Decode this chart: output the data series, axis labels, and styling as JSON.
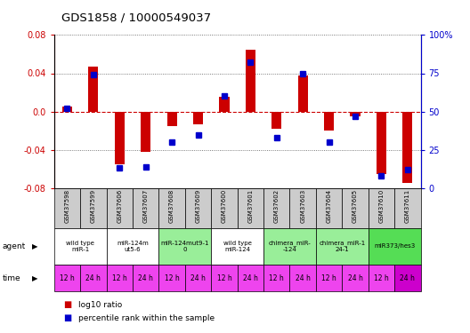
{
  "title": "GDS1858 / 10000549037",
  "samples": [
    "GSM37598",
    "GSM37599",
    "GSM37606",
    "GSM37607",
    "GSM37608",
    "GSM37609",
    "GSM37600",
    "GSM37601",
    "GSM37602",
    "GSM37603",
    "GSM37604",
    "GSM37605",
    "GSM37610",
    "GSM37611"
  ],
  "log10_ratio": [
    0.005,
    0.047,
    -0.055,
    -0.042,
    -0.015,
    -0.013,
    0.015,
    0.065,
    -0.018,
    0.038,
    -0.02,
    -0.005,
    -0.065,
    -0.075
  ],
  "percentile_rank": [
    52,
    74,
    13,
    14,
    30,
    35,
    60,
    82,
    33,
    75,
    30,
    47,
    8,
    12
  ],
  "agents": [
    {
      "label": "wild type\nmiR-1",
      "cols": [
        0,
        1
      ],
      "color": "#ffffff"
    },
    {
      "label": "miR-124m\nut5-6",
      "cols": [
        2,
        3
      ],
      "color": "#ffffff"
    },
    {
      "label": "miR-124mut9-1\n0",
      "cols": [
        4,
        5
      ],
      "color": "#99ee99"
    },
    {
      "label": "wild type\nmiR-124",
      "cols": [
        6,
        7
      ],
      "color": "#ffffff"
    },
    {
      "label": "chimera_miR-\n-124",
      "cols": [
        8,
        9
      ],
      "color": "#99ee99"
    },
    {
      "label": "chimera_miR-1\n24-1",
      "cols": [
        10,
        11
      ],
      "color": "#99ee99"
    },
    {
      "label": "miR373/hes3",
      "cols": [
        12,
        13
      ],
      "color": "#55dd55"
    }
  ],
  "time_labels": [
    "12 h",
    "24 h",
    "12 h",
    "24 h",
    "12 h",
    "24 h",
    "12 h",
    "24 h",
    "12 h",
    "24 h",
    "12 h",
    "24 h",
    "12 h",
    "24 h"
  ],
  "time_colors": [
    "#ee44ee",
    "#ee44ee",
    "#ee44ee",
    "#ee44ee",
    "#ee44ee",
    "#ee44ee",
    "#ee44ee",
    "#ee44ee",
    "#ee44ee",
    "#ee44ee",
    "#ee44ee",
    "#ee44ee",
    "#ee44ee",
    "#cc00cc"
  ],
  "ylim": [
    -0.08,
    0.08
  ],
  "yticks_left": [
    -0.08,
    -0.04,
    0.0,
    0.04,
    0.08
  ],
  "yticks_right_vals": [
    0,
    25,
    50,
    75,
    100
  ],
  "yticks_right_labels": [
    "0",
    "25",
    "50",
    "75",
    "100%"
  ],
  "bar_color": "#cc0000",
  "dot_color": "#0000cc",
  "sample_bg": "#cccccc",
  "legend_items": [
    {
      "color": "#cc0000",
      "label": "log10 ratio"
    },
    {
      "color": "#0000cc",
      "label": "percentile rank within the sample"
    }
  ]
}
